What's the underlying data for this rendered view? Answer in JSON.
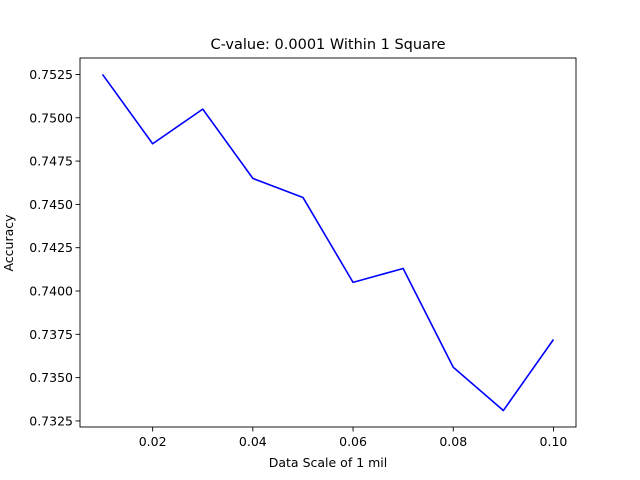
{
  "chart_data": {
    "type": "line",
    "title": "C-value: 0.0001 Within 1 Square",
    "xlabel": "Data Scale of 1 mil",
    "ylabel": "Accuracy",
    "xlim": [
      0.0055,
      0.1045
    ],
    "ylim": [
      0.73215,
      0.75345
    ],
    "x_ticks": [
      0.02,
      0.04,
      0.06,
      0.08,
      0.1
    ],
    "x_tick_labels": [
      "0.02",
      "0.04",
      "0.06",
      "0.08",
      "0.10"
    ],
    "y_ticks": [
      0.7325,
      0.735,
      0.7375,
      0.74,
      0.7425,
      0.745,
      0.7475,
      0.75,
      0.7525
    ],
    "y_tick_labels": [
      "0.7325",
      "0.7350",
      "0.7375",
      "0.7400",
      "0.7425",
      "0.7450",
      "0.7475",
      "0.7500",
      "0.7525"
    ],
    "grid": false,
    "legend": false,
    "series": [
      {
        "color": "#0000ff",
        "x": [
          0.01,
          0.02,
          0.03,
          0.04,
          0.05,
          0.06,
          0.07,
          0.08,
          0.09,
          0.1
        ],
        "y": [
          0.7525,
          0.7485,
          0.7505,
          0.7465,
          0.7454,
          0.7405,
          0.7413,
          0.7356,
          0.7331,
          0.7372
        ]
      }
    ]
  }
}
